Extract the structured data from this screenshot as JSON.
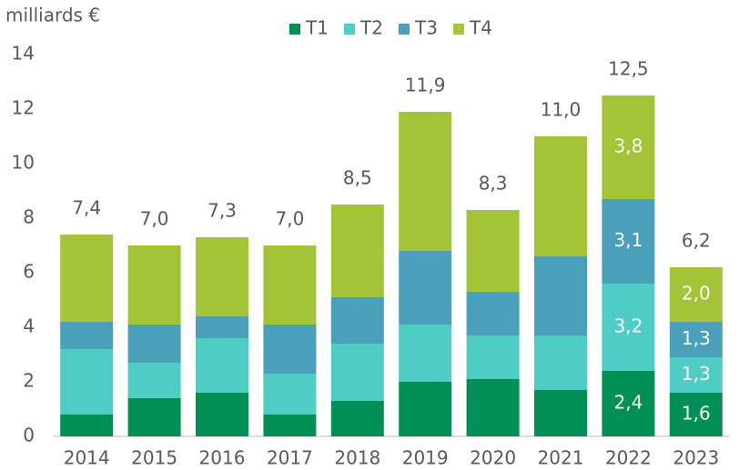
{
  "chart_data": {
    "type": "stacked-bar",
    "y_label": "milliards €",
    "categories": [
      "2014",
      "2015",
      "2016",
      "2017",
      "2018",
      "2019",
      "2020",
      "2021",
      "2022",
      "2023"
    ],
    "series": [
      {
        "name": "T1",
        "color": "#008f54",
        "values": [
          0.8,
          1.4,
          1.6,
          0.8,
          1.3,
          2.0,
          2.1,
          1.7,
          2.4,
          1.6
        ],
        "value_labels": [
          null,
          null,
          null,
          null,
          null,
          null,
          null,
          null,
          "2,4",
          "1,6"
        ]
      },
      {
        "name": "T2",
        "color": "#4fcdc4",
        "values": [
          2.4,
          1.3,
          2.0,
          1.5,
          2.1,
          2.1,
          1.6,
          2.0,
          3.2,
          1.3
        ],
        "value_labels": [
          null,
          null,
          null,
          null,
          null,
          null,
          null,
          null,
          "3,2",
          "1,3"
        ]
      },
      {
        "name": "T3",
        "color": "#4a9fbb",
        "values": [
          1.0,
          1.4,
          0.8,
          1.8,
          1.7,
          2.7,
          1.6,
          2.9,
          3.1,
          1.3
        ],
        "value_labels": [
          null,
          null,
          null,
          null,
          null,
          null,
          null,
          null,
          "3,1",
          "1,3"
        ]
      },
      {
        "name": "T4",
        "color": "#a3c437",
        "values": [
          3.2,
          2.9,
          2.9,
          2.9,
          3.4,
          5.1,
          3.0,
          4.4,
          3.8,
          2.0
        ],
        "value_labels": [
          null,
          null,
          null,
          null,
          null,
          null,
          null,
          null,
          "3,8",
          "2,0"
        ]
      }
    ],
    "totals": [
      7.4,
      7.0,
      7.3,
      7.0,
      8.5,
      11.9,
      8.3,
      11.0,
      12.5,
      6.2
    ],
    "total_labels": [
      "7,4",
      "7,0",
      "7,3",
      "7,0",
      "8,5",
      "11,9",
      "8,3",
      "11,0",
      "12,5",
      "6,2"
    ],
    "ylim": [
      0,
      14
    ],
    "yticks": [
      0,
      2,
      4,
      6,
      8,
      10,
      12,
      14
    ],
    "grid": false,
    "legend": "top"
  }
}
